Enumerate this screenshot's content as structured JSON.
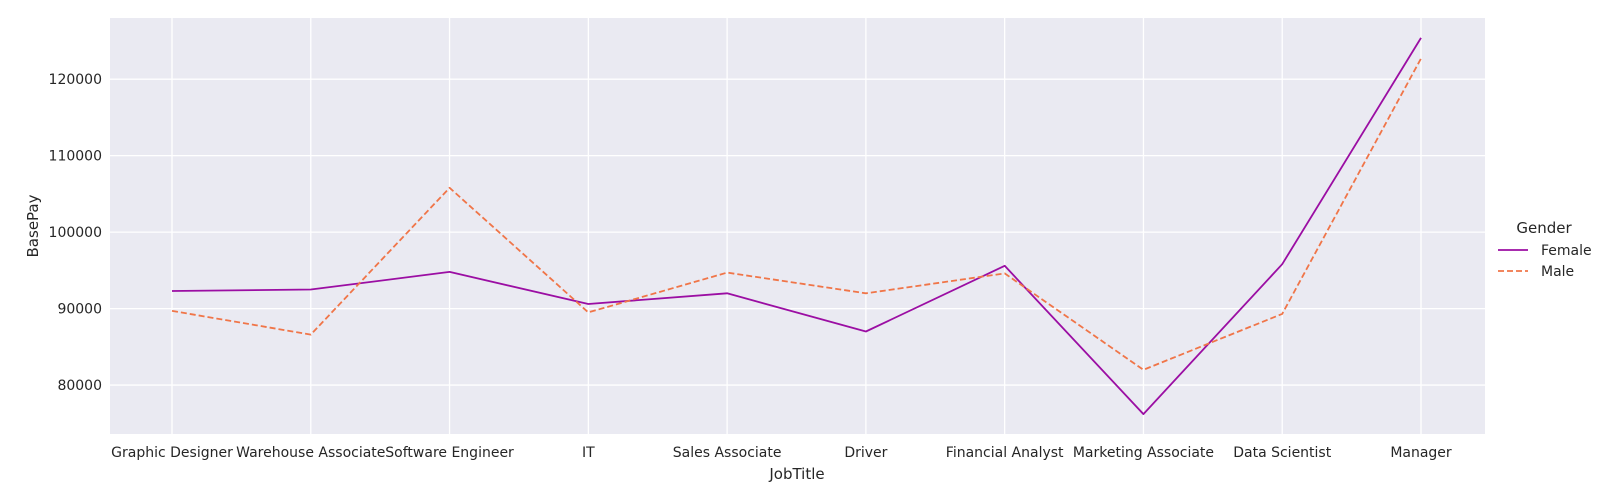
{
  "chart_data": {
    "type": "line",
    "xlabel": "JobTitle",
    "ylabel": "BasePay",
    "categories": [
      "Graphic Designer",
      "Warehouse Associate",
      "Software Engineer",
      "IT",
      "Sales Associate",
      "Driver",
      "Financial Analyst",
      "Marketing Associate",
      "Data Scientist",
      "Manager"
    ],
    "ylim": [
      73600,
      128000
    ],
    "yticks": [
      80000,
      90000,
      100000,
      110000,
      120000
    ],
    "grid": true,
    "background": "#eaeaf2",
    "legend": {
      "title": "Gender",
      "placement": "right"
    },
    "series": [
      {
        "name": "Female",
        "color": "#9b0ea3",
        "dash": "solid",
        "values": [
          92300,
          92500,
          94800,
          90600,
          92000,
          87000,
          95600,
          76200,
          95800,
          125400
        ]
      },
      {
        "name": "Male",
        "color": "#f07548",
        "dash": "dashed",
        "values": [
          89700,
          86600,
          105800,
          89500,
          94700,
          92000,
          94600,
          82000,
          89300,
          122700
        ]
      }
    ]
  }
}
